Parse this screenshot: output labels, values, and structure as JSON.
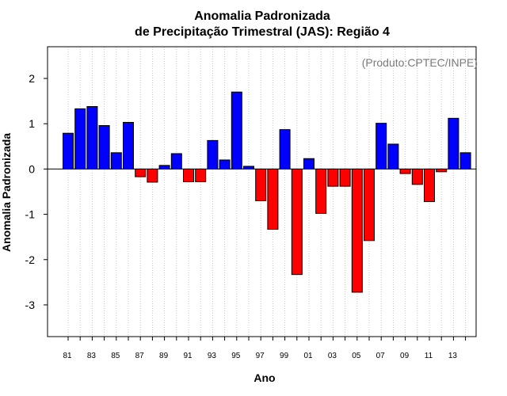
{
  "chart_data": {
    "type": "bar",
    "title_line1": "Anomalia Padronizada",
    "title_line2": "de Precipitação Trimestral (JAS): Região 4",
    "xlabel": "Ano",
    "ylabel": "Anomalia Padronizada",
    "annotation": "(Produto:CPTEC/INPE)",
    "ylim": [
      -3.7,
      2.7
    ],
    "yticks": [
      -3,
      -2,
      -1,
      0,
      1,
      2
    ],
    "grid": "vertical dotted",
    "positive_color": "#0000ff",
    "negative_color": "#ff0000",
    "categories": [
      "81",
      "82",
      "83",
      "84",
      "85",
      "86",
      "87",
      "88",
      "89",
      "90",
      "91",
      "92",
      "93",
      "94",
      "95",
      "96",
      "97",
      "98",
      "99",
      "00",
      "01",
      "02",
      "03",
      "04",
      "05",
      "06",
      "07",
      "08",
      "09",
      "10",
      "11",
      "12",
      "13",
      "14"
    ],
    "xtick_labels": [
      "81",
      "",
      "83",
      "",
      "85",
      "",
      "87",
      "",
      "89",
      "",
      "91",
      "",
      "93",
      "",
      "95",
      "",
      "97",
      "",
      "99",
      "",
      "01",
      "",
      "03",
      "",
      "05",
      "",
      "07",
      "",
      "09",
      "",
      "11",
      "",
      "13",
      ""
    ],
    "values": [
      0.79,
      1.33,
      1.38,
      0.96,
      0.36,
      1.03,
      -0.17,
      -0.29,
      0.08,
      0.34,
      -0.28,
      -0.28,
      0.63,
      0.2,
      1.7,
      0.06,
      -0.7,
      -1.33,
      0.87,
      -2.33,
      0.23,
      -0.98,
      -0.38,
      -0.38,
      -2.72,
      -1.58,
      1.01,
      0.55,
      -0.1,
      -0.34,
      -0.72,
      -0.06,
      1.12,
      0.36
    ]
  }
}
